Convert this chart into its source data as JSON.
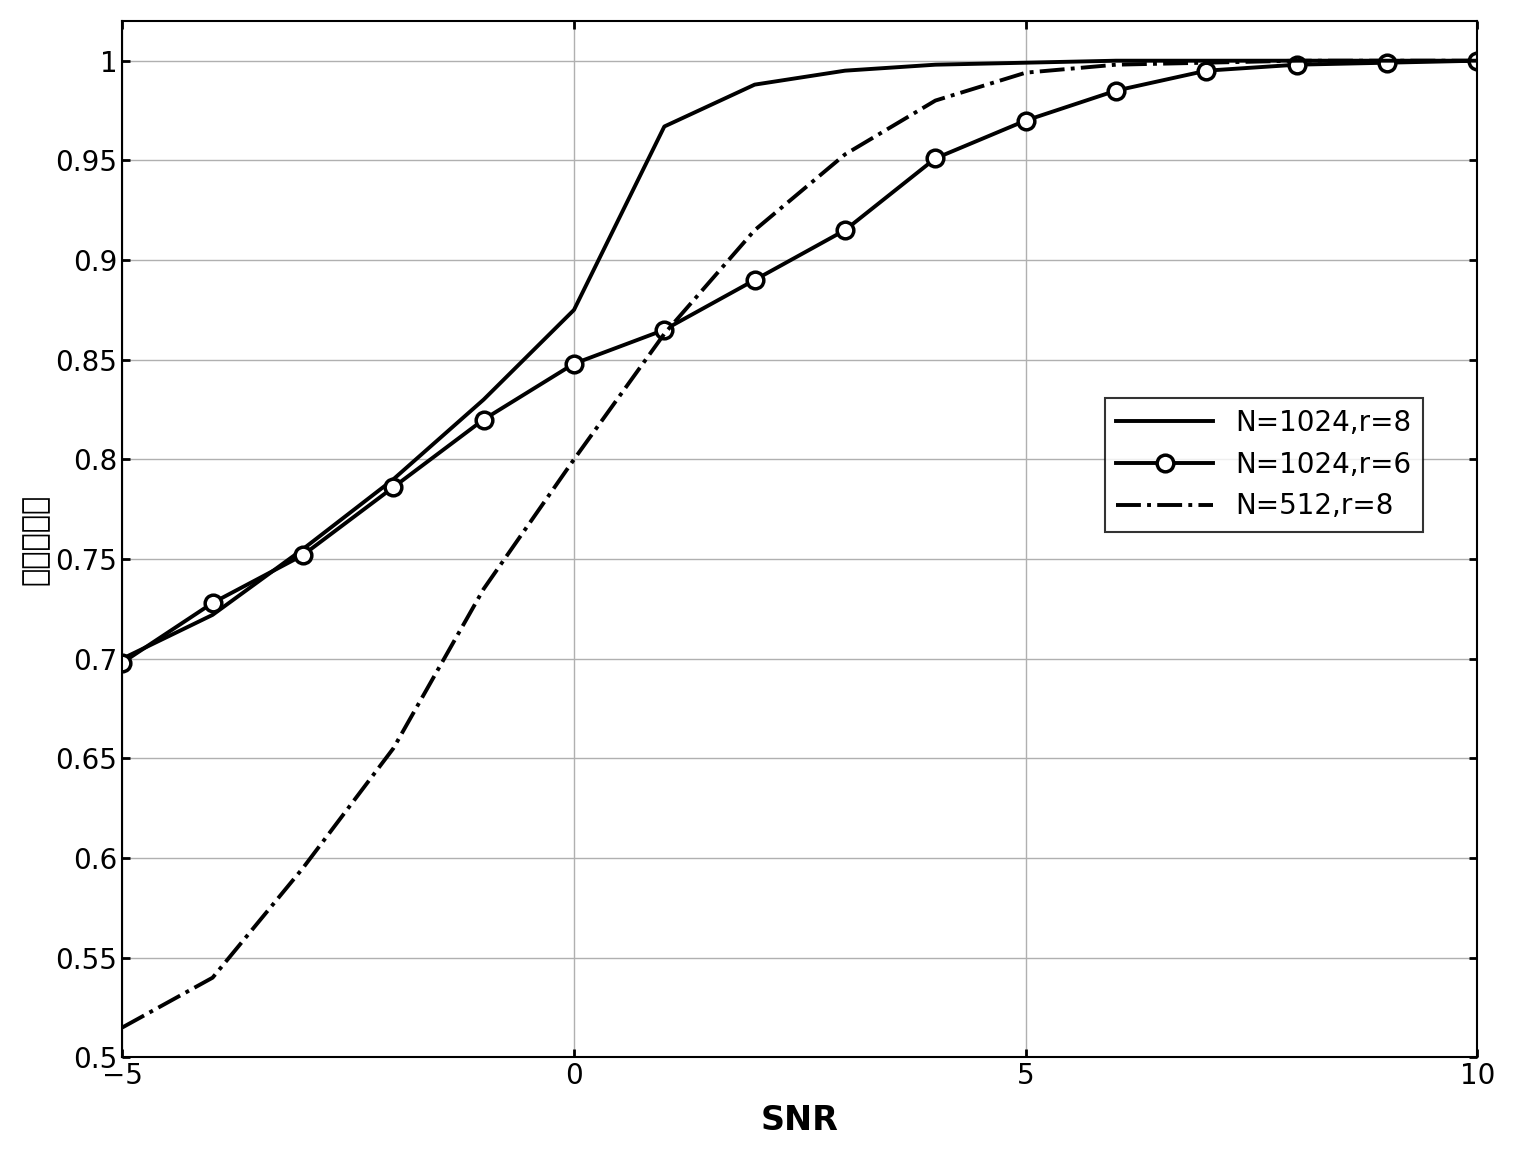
{
  "title": "",
  "xlabel": "SNR",
  "ylabel": "识别正确率",
  "xlim": [
    -5,
    10
  ],
  "ylim": [
    0.5,
    1.02
  ],
  "yticks": [
    0.5,
    0.55,
    0.6,
    0.65,
    0.7,
    0.75,
    0.8,
    0.85,
    0.9,
    0.95,
    1.0
  ],
  "xticks": [
    -5,
    0,
    5,
    10
  ],
  "line1": {
    "label": "N=1024,r=8",
    "x": [
      -5,
      -4,
      -3,
      -2,
      -1,
      0,
      1,
      2,
      3,
      4,
      5,
      6,
      7,
      8,
      9,
      10
    ],
    "y": [
      0.7,
      0.722,
      0.755,
      0.79,
      0.83,
      0.875,
      0.967,
      0.988,
      0.995,
      0.998,
      0.999,
      1.0,
      1.0,
      1.0,
      1.0,
      1.0
    ],
    "linestyle": "-",
    "linewidth": 2.8,
    "color": "#000000",
    "marker": null
  },
  "line2": {
    "label": "N=1024,r=6",
    "x": [
      -5,
      -4,
      -3,
      -2,
      -1,
      0,
      1,
      2,
      3,
      4,
      5,
      6,
      7,
      8,
      9,
      10
    ],
    "y": [
      0.698,
      0.728,
      0.752,
      0.786,
      0.82,
      0.848,
      0.865,
      0.89,
      0.915,
      0.951,
      0.97,
      0.985,
      0.995,
      0.998,
      0.999,
      1.0
    ],
    "linestyle": "-",
    "linewidth": 2.8,
    "color": "#000000",
    "marker": "o",
    "markersize": 12
  },
  "line3": {
    "label": "N=512,r=8",
    "x": [
      -5,
      -4,
      -3,
      -2,
      -1,
      0,
      1,
      2,
      3,
      4,
      5,
      6,
      7,
      8,
      9,
      10
    ],
    "y": [
      0.515,
      0.54,
      0.595,
      0.655,
      0.735,
      0.8,
      0.863,
      0.915,
      0.953,
      0.98,
      0.994,
      0.998,
      0.999,
      1.0,
      1.0,
      1.0
    ],
    "linestyle": "-.",
    "linewidth": 2.8,
    "color": "#000000",
    "marker": null
  },
  "legend_loc": "center right",
  "grid": true,
  "figsize": [
    15.16,
    11.58
  ],
  "dpi": 100,
  "background_color": "#ffffff"
}
